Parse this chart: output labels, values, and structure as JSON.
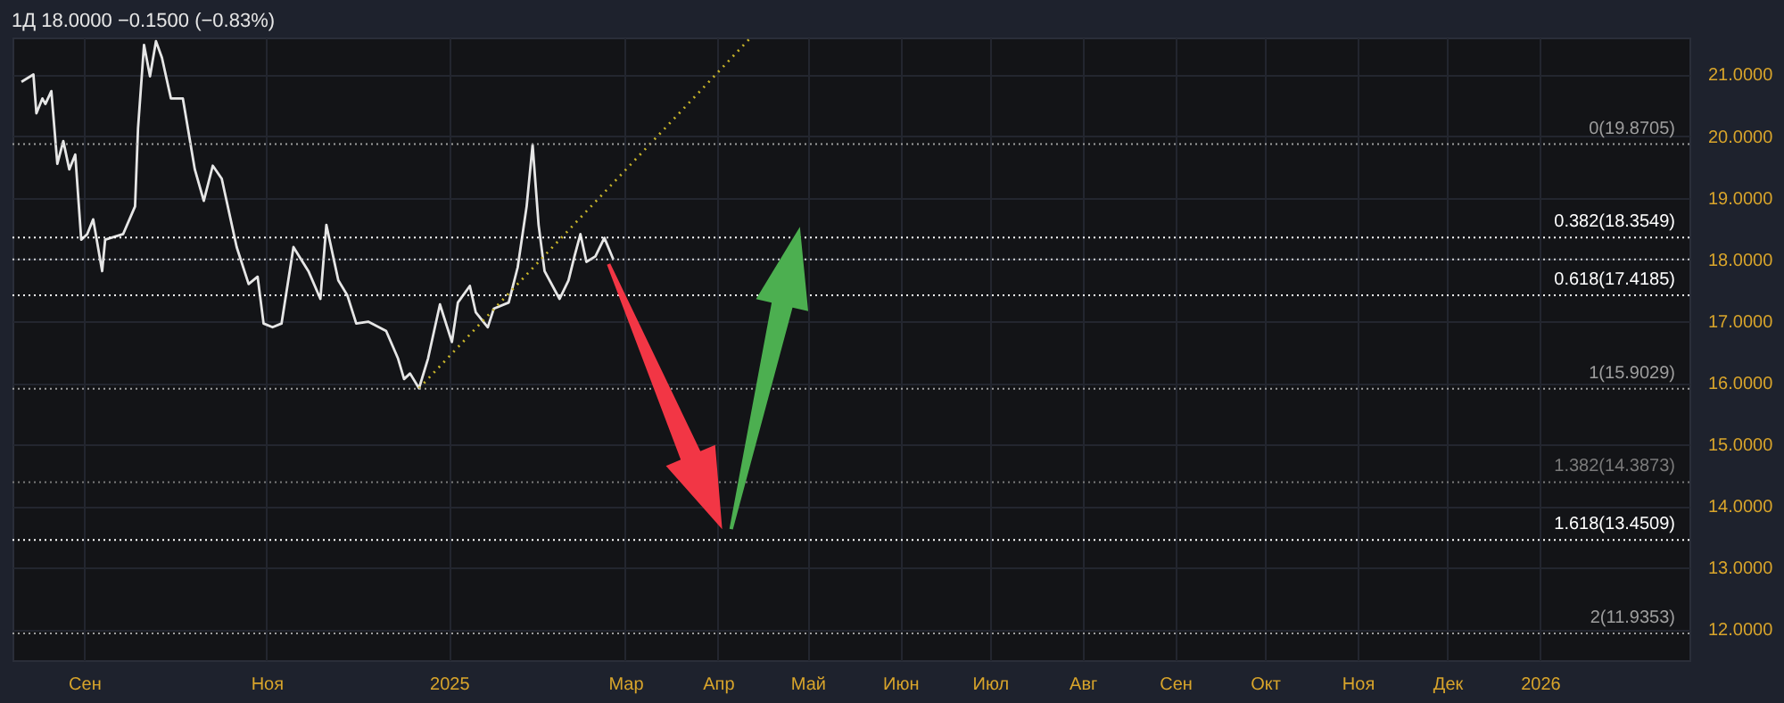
{
  "chart_data": {
    "type": "line",
    "title": "1Д 18.0000 −0.1500 (−0.83%)",
    "x": [
      "2024-08-11",
      "2024-08-15",
      "2024-08-16",
      "2024-08-18",
      "2024-08-19",
      "2024-08-21",
      "2024-08-23",
      "2024-08-25",
      "2024-08-27",
      "2024-08-29",
      "2024-08-31",
      "2024-09-02",
      "2024-09-04",
      "2024-09-07",
      "2024-09-08",
      "2024-09-14",
      "2024-09-18",
      "2024-09-19",
      "2024-09-21",
      "2024-09-23",
      "2024-09-25",
      "2024-09-27",
      "2024-09-30",
      "2024-10-04",
      "2024-10-08",
      "2024-10-11",
      "2024-10-14",
      "2024-10-17",
      "2024-10-22",
      "2024-10-26",
      "2024-10-29",
      "2024-10-31",
      "2024-11-03",
      "2024-11-06",
      "2024-11-10",
      "2024-11-15",
      "2024-11-19",
      "2024-11-21",
      "2024-11-25",
      "2024-11-28",
      "2024-12-01",
      "2024-12-05",
      "2024-12-11",
      "2024-12-15",
      "2024-12-17",
      "2024-12-19",
      "2024-12-22",
      "2024-12-25",
      "2024-12-29",
      "2025-01-02",
      "2025-01-04",
      "2025-01-08",
      "2025-01-10",
      "2025-01-14",
      "2025-01-16",
      "2025-01-21",
      "2025-01-24",
      "2025-01-27",
      "2025-01-29",
      "2025-01-31",
      "2025-02-02",
      "2025-02-07",
      "2025-02-10",
      "2025-02-12",
      "2025-02-14",
      "2025-02-16",
      "2025-02-19",
      "2025-02-22",
      "2025-02-25"
    ],
    "series": [
      {
        "color": "#e6e6e6",
        "values": [
          20.88,
          21.0,
          20.37,
          20.61,
          20.52,
          20.73,
          19.55,
          19.92,
          19.46,
          19.7,
          18.32,
          18.41,
          18.65,
          17.81,
          18.32,
          18.41,
          18.86,
          20.13,
          21.48,
          20.97,
          21.54,
          21.27,
          20.61,
          20.61,
          19.46,
          18.95,
          19.52,
          19.31,
          18.2,
          17.6,
          17.72,
          16.96,
          16.9,
          16.96,
          18.2,
          17.81,
          17.36,
          18.56,
          17.66,
          17.42,
          16.96,
          16.99,
          16.84,
          16.39,
          16.06,
          16.15,
          15.91,
          16.39,
          17.27,
          16.66,
          17.3,
          17.57,
          17.14,
          16.9,
          17.2,
          17.3,
          17.87,
          18.86,
          19.86,
          18.56,
          17.81,
          17.36,
          17.66,
          18.05,
          18.41,
          17.96,
          18.05,
          18.35,
          18.0
        ]
      },
      {
        "type": "line",
        "color": "#c9b52a",
        "line_style": "dotted",
        "x": [
          "2024-12-22",
          "2025-04-12"
        ],
        "values": [
          15.91,
          21.6
        ]
      }
    ],
    "xlim": [
      "2024-08-08",
      "2026-02-20"
    ],
    "xticks": [
      {
        "value": "2024-09-01",
        "label": "Сен"
      },
      {
        "value": "2024-11-01",
        "label": "Ноя"
      },
      {
        "value": "2025-01-01",
        "label": "2025"
      },
      {
        "value": "2025-03-01",
        "label": "Мар"
      },
      {
        "value": "2025-04-01",
        "label": "Апр"
      },
      {
        "value": "2025-05-01",
        "label": "Май"
      },
      {
        "value": "2025-06-01",
        "label": "Июн"
      },
      {
        "value": "2025-07-01",
        "label": "Июл"
      },
      {
        "value": "2025-08-01",
        "label": "Авг"
      },
      {
        "value": "2025-09-01",
        "label": "Сен"
      },
      {
        "value": "2025-10-01",
        "label": "Окт"
      },
      {
        "value": "2025-11-01",
        "label": "Ноя"
      },
      {
        "value": "2025-12-01",
        "label": "Дек"
      },
      {
        "value": "2026-01-01",
        "label": "2026"
      }
    ],
    "ylim": [
      11.5,
      21.6
    ],
    "yticks": [
      {
        "value": 12,
        "label": "12.0000"
      },
      {
        "value": 13,
        "label": "13.0000"
      },
      {
        "value": 14,
        "label": "14.0000"
      },
      {
        "value": 15,
        "label": "15.0000"
      },
      {
        "value": 16,
        "label": "16.0000"
      },
      {
        "value": 17,
        "label": "17.0000"
      },
      {
        "value": 18,
        "label": "18.0000"
      },
      {
        "value": 19,
        "label": "19.0000"
      },
      {
        "value": 20,
        "label": "20.0000"
      },
      {
        "value": 21,
        "label": "21.0000"
      }
    ],
    "ref_lines": [
      {
        "axis": "y",
        "value": 19.8705,
        "label": "0(19.8705)",
        "color": "#9e9e9e"
      },
      {
        "axis": "y",
        "value": 18.3549,
        "label": "0.382(18.3549)",
        "color": "#ffffff"
      },
      {
        "axis": "y",
        "value": 17.4185,
        "label": "0.618(17.4185)",
        "color": "#ffffff"
      },
      {
        "axis": "y",
        "value": 15.9029,
        "label": "1(15.9029)",
        "color": "#9e9e9e"
      },
      {
        "axis": "y",
        "value": 14.3873,
        "label": "1.382(14.3873)",
        "color": "#7a7a7a"
      },
      {
        "axis": "y",
        "value": 13.4509,
        "label": "1.618(13.4509)",
        "color": "#ffffff"
      },
      {
        "axis": "y",
        "value": 11.9353,
        "label": "2(11.9353)",
        "color": "#9e9e9e"
      },
      {
        "axis": "y",
        "value": 18.0,
        "color": "#cfcfcf"
      }
    ],
    "line_style": "solid",
    "grid": true
  }
}
